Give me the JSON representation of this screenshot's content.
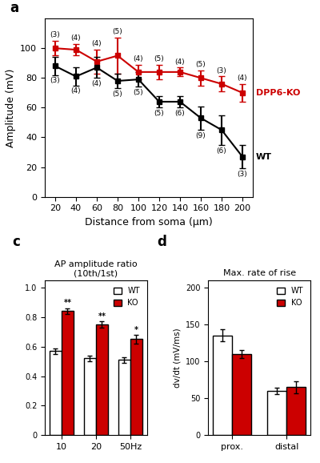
{
  "chart_data": [
    {
      "type": "line",
      "panel_label": "a",
      "x": [
        20,
        40,
        60,
        80,
        100,
        120,
        140,
        160,
        180,
        200
      ],
      "xlim": [
        10,
        210
      ],
      "xticks": [
        20,
        40,
        60,
        80,
        100,
        120,
        140,
        160,
        180,
        200
      ],
      "ylim": [
        0,
        120
      ],
      "yticks": [
        0,
        20,
        40,
        60,
        80,
        100
      ],
      "xlabel": "Distance from soma (μm)",
      "ylabel": "Amplitude (mV)",
      "marker": "square",
      "series": [
        {
          "name": "DPP6-KO",
          "color": "#cc0000",
          "values": [
            100,
            99,
            91,
            95,
            84,
            84,
            84,
            80,
            76,
            70
          ],
          "errors": [
            5,
            4,
            8,
            12,
            5,
            5,
            3,
            5,
            5,
            6
          ],
          "point_labels": [
            "(3)",
            "(4)",
            "(4)",
            "(5)",
            "(4)",
            "(5)",
            "(4)",
            "(5)",
            "(3)",
            "(4)"
          ]
        },
        {
          "name": "WT",
          "color": "#000000",
          "values": [
            88,
            81,
            87,
            78,
            79,
            64,
            64,
            53,
            45,
            27
          ],
          "errors": [
            6,
            6,
            7,
            5,
            5,
            4,
            4,
            8,
            10,
            8
          ],
          "point_labels": [
            "(3)",
            "(4)",
            "(4)",
            "(5)",
            "(5)",
            "(5)",
            "(6)",
            "(9)",
            "(6)",
            "(3)"
          ]
        }
      ]
    },
    {
      "type": "bar",
      "panel_label": "c",
      "title": "AP amplitude ratio",
      "subtitle": "(10th/1st)",
      "categories": [
        "10",
        "20",
        "50Hz"
      ],
      "ylim": [
        0,
        1.05
      ],
      "yticks": [
        0,
        0.2,
        0.4,
        0.6,
        0.8,
        {
          "value": 1.0,
          "label": "1.0"
        }
      ],
      "legend": "upper right",
      "series": [
        {
          "name": "WT",
          "color": "#ffffff",
          "values": [
            0.57,
            0.52,
            0.51
          ],
          "errors": [
            0.02,
            0.02,
            0.02
          ]
        },
        {
          "name": "KO",
          "color": "#cc0000",
          "values": [
            0.84,
            0.75,
            0.65
          ],
          "errors": [
            0.02,
            0.02,
            0.03
          ],
          "annotations": [
            "**",
            "**",
            "*"
          ]
        }
      ]
    },
    {
      "type": "bar",
      "panel_label": "d",
      "title": "Max. rate of rise",
      "ylabel": "dv/dt (mV/ms)",
      "categories": [
        "prox.",
        "distal"
      ],
      "ylim": [
        0,
        210
      ],
      "yticks": [
        0,
        50,
        100,
        150,
        200
      ],
      "legend": "upper right",
      "series": [
        {
          "name": "WT",
          "color": "#ffffff",
          "values": [
            135,
            60
          ],
          "errors": [
            8,
            4
          ]
        },
        {
          "name": "KO",
          "color": "#cc0000",
          "values": [
            110,
            65
          ],
          "errors": [
            5,
            8
          ]
        }
      ]
    }
  ]
}
